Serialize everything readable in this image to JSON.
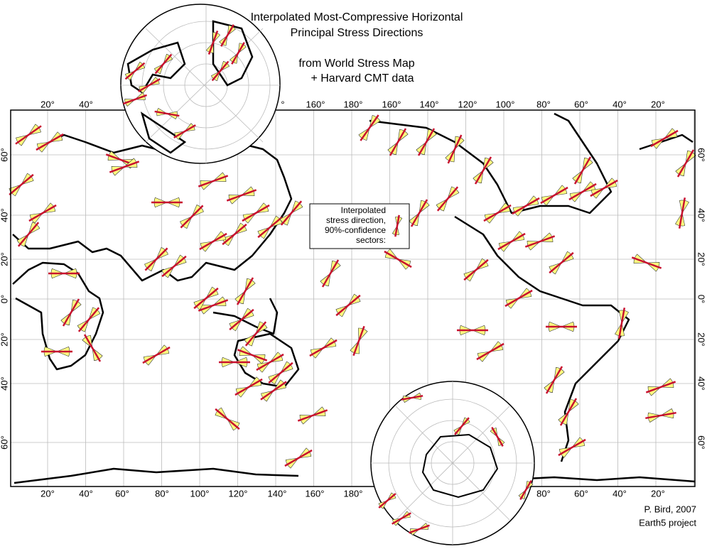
{
  "title": [
    "Interpolated Most-Compressive Horizontal",
    "Principal Stress Directions"
  ],
  "subtitle": [
    "from World Stress Map",
    "+ Harvard CMT data"
  ],
  "legend": [
    "Interpolated",
    "stress direction,",
    "90%-confidence",
    "sectors:"
  ],
  "credit": [
    "P. Bird, 2007",
    "Earth5 project"
  ],
  "axes": {
    "top_labels": [
      "20°",
      "40°",
      "°",
      "160°",
      "180°",
      "160°",
      "140°",
      "120°",
      "100°",
      "80°",
      "60°",
      "40°",
      "20°"
    ],
    "bottom_labels": [
      "20°",
      "40°",
      "60°",
      "80°",
      "100°",
      "120°",
      "140°",
      "160°",
      "180°",
      "80°",
      "60°",
      "40°",
      "20°"
    ],
    "left_labels": [
      "60°",
      "40°",
      "20°",
      "0°",
      "20°",
      "40°",
      "60°"
    ],
    "right_labels": [
      "60°",
      "40°",
      "20°",
      "0°",
      "20°",
      "40°",
      "60°"
    ]
  }
}
